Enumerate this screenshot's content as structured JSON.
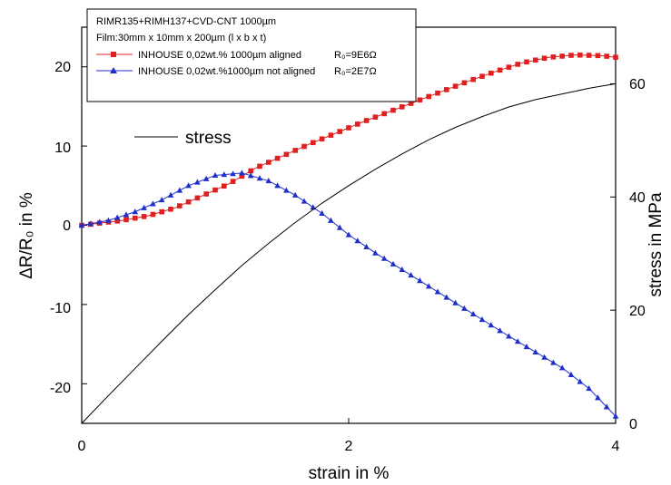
{
  "chart_data": {
    "type": "line",
    "xlabel": "strain in %",
    "ylabel_left": "ΔR/R₀ in %",
    "ylabel_right": "stress in MPa",
    "xlim": [
      0,
      4
    ],
    "ylim_left": [
      -25,
      25
    ],
    "ylim_right": [
      0,
      70
    ],
    "xticks": [
      "0",
      "2",
      "4"
    ],
    "yticks_left": [
      "-20",
      "-10",
      "0",
      "10",
      "20"
    ],
    "yticks_right": [
      "0",
      "20",
      "40",
      "60"
    ],
    "legend": {
      "line1": "RIMR135+RIMH137+CVD-CNT 1000µm",
      "line2": "Film:30mm x 10mm x 200µm (l x b x t)",
      "placement": "top-left"
    },
    "series": [
      {
        "name": "INHOUSE 0,02wt.% 1000µm aligned",
        "r0_label": "R₀=9E6Ω",
        "axis": "left",
        "color": "#e02020",
        "marker": "square",
        "x": [
          0,
          0.3,
          0.5,
          0.7,
          0.9,
          1.1,
          1.3,
          1.5,
          1.7,
          1.9,
          2.1,
          2.3,
          2.5,
          2.7,
          2.9,
          3.1,
          3.3,
          3.5,
          3.7,
          3.9,
          4.0
        ],
        "y": [
          0,
          0.6,
          1.2,
          2.2,
          3.7,
          5.2,
          7.2,
          8.7,
          10.2,
          11.6,
          13.0,
          14.3,
          15.6,
          16.9,
          18.2,
          19.4,
          20.5,
          21.2,
          21.5,
          21.4,
          21.2
        ]
      },
      {
        "name": "INHOUSE 0,02wt.%1000µm not aligned",
        "r0_label": "R₀=2E7Ω",
        "axis": "left",
        "color": "#1f2fcc",
        "marker": "triangle",
        "x": [
          0,
          0.2,
          0.4,
          0.6,
          0.8,
          1.0,
          1.2,
          1.4,
          1.6,
          1.8,
          2.0,
          2.2,
          2.4,
          2.6,
          2.8,
          3.0,
          3.2,
          3.4,
          3.6,
          3.8,
          4.0
        ],
        "y": [
          0,
          0.6,
          1.7,
          3.2,
          5.0,
          6.3,
          6.6,
          5.6,
          3.8,
          1.5,
          -1.2,
          -3.5,
          -5.6,
          -7.7,
          -9.8,
          -11.9,
          -14.0,
          -16.0,
          -18.0,
          -20.6,
          -24.1
        ]
      },
      {
        "name": "stress",
        "axis": "right",
        "color": "#000000",
        "marker": "none",
        "x": [
          0,
          0.2,
          0.4,
          0.6,
          0.8,
          1.0,
          1.2,
          1.4,
          1.6,
          1.8,
          2.0,
          2.2,
          2.4,
          2.6,
          2.8,
          3.0,
          3.2,
          3.4,
          3.6,
          3.8,
          4.0
        ],
        "y": [
          0,
          4.9,
          9.7,
          14.5,
          19.2,
          23.6,
          27.9,
          31.8,
          35.5,
          38.9,
          42.0,
          44.9,
          47.6,
          50.1,
          52.3,
          54.2,
          55.9,
          57.2,
          58.2,
          59.2,
          60.0
        ]
      }
    ]
  }
}
